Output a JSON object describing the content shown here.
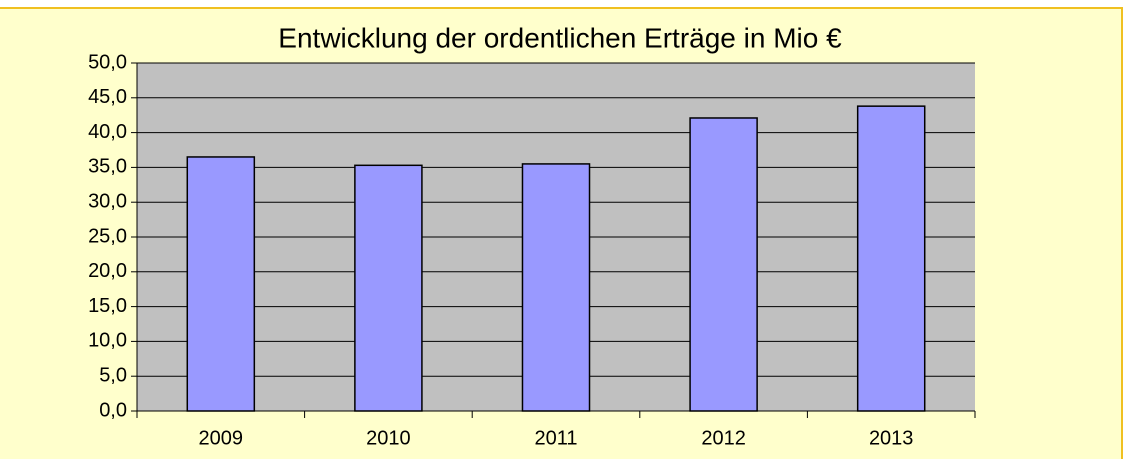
{
  "chart_data": {
    "type": "bar",
    "title": "Entwicklung der ordentlichen Erträge in Mio €",
    "categories": [
      "2009",
      "2010",
      "2011",
      "2012",
      "2013"
    ],
    "values": [
      36.5,
      35.3,
      35.5,
      42.1,
      43.8
    ],
    "color": "#9999ff",
    "ylim": [
      0,
      50
    ],
    "yticks": [
      {
        "value": 0,
        "label": "0,0"
      },
      {
        "value": 5,
        "label": "5,0"
      },
      {
        "value": 10,
        "label": "10,0"
      },
      {
        "value": 15,
        "label": "15,0"
      },
      {
        "value": 20,
        "label": "20,0"
      },
      {
        "value": 25,
        "label": "25,0"
      },
      {
        "value": 30,
        "label": "30,0"
      },
      {
        "value": 35,
        "label": "35,0"
      },
      {
        "value": 40,
        "label": "40,0"
      },
      {
        "value": 45,
        "label": "45,0"
      },
      {
        "value": 50,
        "label": "50,0"
      }
    ],
    "grid": true
  }
}
